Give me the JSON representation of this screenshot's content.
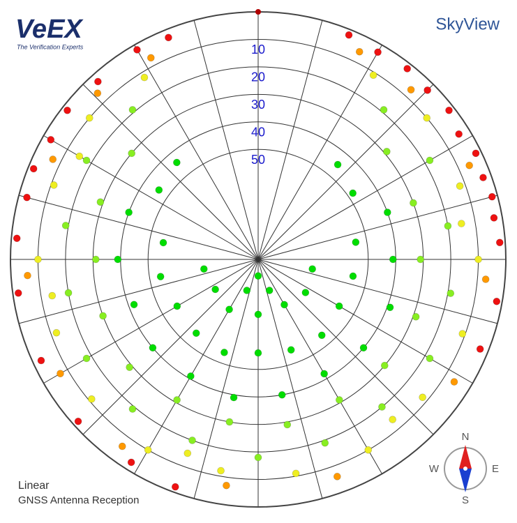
{
  "logo": {
    "name": "VeEX",
    "tagline": "The Verification Experts"
  },
  "chart_data": {
    "type": "polar-scatter",
    "title": "SkyView",
    "notes": [
      "Linear",
      "GNSS Antenna Reception"
    ],
    "compass": {
      "n": "N",
      "e": "E",
      "s": "S",
      "w": "W"
    },
    "rlim": [
      0,
      90
    ],
    "rticks": [
      10,
      20,
      30,
      40,
      50
    ],
    "series": [
      {
        "color": "#ee1111",
        "az": [
          22,
          30,
          38,
          45,
          52,
          58,
          64,
          70,
          75,
          80,
          86,
          100,
          112,
          200,
          212,
          228,
          245,
          262,
          275,
          285,
          292,
          300,
          308,
          318,
          330,
          338
        ],
        "el": [
          2,
          3,
          2,
          3,
          2,
          4,
          2,
          3,
          2,
          3,
          2,
          2,
          3,
          2,
          3,
          2,
          3,
          2,
          2,
          3,
          2,
          3,
          2,
          3,
          2,
          3
        ]
      },
      {
        "color": "#ff9900",
        "az": [
          26,
          42,
          66,
          95,
          122,
          160,
          188,
          216,
          240,
          266,
          296,
          316,
          332
        ],
        "el": [
          6,
          7,
          6,
          7,
          6,
          6,
          7,
          6,
          7,
          6,
          7,
          6,
          7
        ]
      },
      {
        "color": "#eeee22",
        "az": [
          32,
          50,
          70,
          90,
          110,
          130,
          150,
          170,
          190,
          210,
          230,
          250,
          270,
          290,
          310,
          328,
          80,
          140,
          200,
          260,
          300
        ],
        "el": [
          11,
          10,
          12,
          10,
          11,
          12,
          10,
          11,
          12,
          10,
          11,
          12,
          10,
          11,
          10,
          12,
          15,
          14,
          15,
          14,
          15
        ]
      },
      {
        "color": "#88ee22",
        "az": [
          40,
          60,
          80,
          100,
          120,
          140,
          160,
          180,
          200,
          220,
          240,
          260,
          280,
          300,
          320,
          50,
          70,
          90,
          110,
          130,
          150,
          170,
          190,
          210,
          230,
          250,
          270,
          290,
          310
        ],
        "el": [
          19,
          18,
          20,
          19,
          18,
          20,
          19,
          18,
          20,
          19,
          18,
          20,
          19,
          18,
          19,
          29,
          30,
          31,
          29,
          30,
          31,
          29,
          30,
          31,
          29,
          30,
          31,
          29,
          30
        ]
      },
      {
        "color": "#00dd00",
        "az": [
          70,
          90,
          110,
          130,
          150,
          170,
          190,
          210,
          230,
          250,
          270,
          290,
          80,
          100,
          120,
          140,
          160,
          180,
          200,
          220,
          240,
          260,
          280,
          100,
          125,
          150,
          180,
          210,
          235,
          260,
          40,
          55,
          305,
          320,
          180,
          160,
          200
        ],
        "el": [
          40,
          41,
          39,
          40,
          42,
          40,
          39,
          41,
          40,
          42,
          39,
          40,
          54,
          55,
          56,
          54,
          55,
          56,
          54,
          55,
          56,
          54,
          55,
          70,
          69,
          71,
          70,
          69,
          71,
          70,
          45,
          48,
          46,
          44,
          84,
          78,
          78
        ]
      }
    ]
  }
}
